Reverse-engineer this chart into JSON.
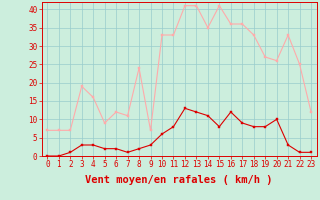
{
  "hours": [
    0,
    1,
    2,
    3,
    4,
    5,
    6,
    7,
    8,
    9,
    10,
    11,
    12,
    13,
    14,
    15,
    16,
    17,
    18,
    19,
    20,
    21,
    22,
    23
  ],
  "vent_moyen": [
    0,
    0,
    1,
    3,
    3,
    2,
    2,
    1,
    2,
    3,
    6,
    8,
    13,
    12,
    11,
    8,
    12,
    9,
    8,
    8,
    10,
    3,
    1,
    1
  ],
  "en_rafales": [
    7,
    7,
    7,
    19,
    16,
    9,
    12,
    11,
    24,
    7,
    33,
    33,
    41,
    41,
    35,
    41,
    36,
    36,
    33,
    27,
    26,
    33,
    25,
    12
  ],
  "color_moyen": "#dd0000",
  "color_rafales": "#ffaaaa",
  "bg_color": "#cceedd",
  "grid_color": "#99cccc",
  "xlabel": "Vent moyen/en rafales ( km/h )",
  "ylim": [
    0,
    42
  ],
  "xlim": [
    -0.5,
    23.5
  ],
  "yticks": [
    0,
    5,
    10,
    15,
    20,
    25,
    30,
    35,
    40
  ],
  "xticks": [
    0,
    1,
    2,
    3,
    4,
    5,
    6,
    7,
    8,
    9,
    10,
    11,
    12,
    13,
    14,
    15,
    16,
    17,
    18,
    19,
    20,
    21,
    22,
    23
  ],
  "tick_fontsize": 5.5,
  "xlabel_fontsize": 7.5,
  "line_width": 0.8,
  "marker_size": 2.0
}
